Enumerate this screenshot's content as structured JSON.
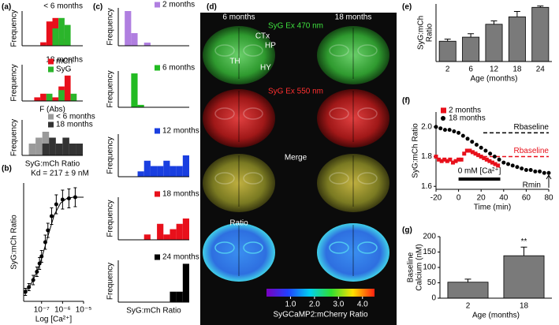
{
  "panel_labels": [
    "(a)",
    "(b)",
    "(c)",
    "(d)",
    "(e)",
    "(f)",
    "(g)"
  ],
  "image_panel": {
    "columns": [
      "6 months",
      "18 months"
    ],
    "rows": [
      "SyG Ex 470 nm",
      "SyG Ex 550 nm",
      "Merge",
      "Ratio"
    ],
    "regions": [
      "CTx",
      "HP",
      "TH",
      "HY"
    ],
    "colorbar": {
      "label": "SyGCaMP2:mCherry Ratio",
      "lim": [
        0,
        4.5
      ],
      "ticks": [
        {
          "value": 1,
          "label": "1.0"
        },
        {
          "value": 2,
          "label": "2.0"
        },
        {
          "value": 3,
          "label": "3.0"
        },
        {
          "value": 4,
          "label": "4.0"
        }
      ]
    }
  },
  "chart_data": [
    {
      "type": "histogram",
      "title": "< 6 months",
      "ylabel": "Frequency",
      "bins": [
        0,
        1,
        2,
        3,
        4,
        5,
        6,
        7,
        8,
        9,
        10
      ],
      "ylim": [
        0,
        10
      ],
      "series": [
        {
          "color": "#e8101b",
          "values": [
            0,
            0,
            0,
            1,
            7,
            8,
            2,
            0,
            0,
            0
          ]
        },
        {
          "color": "#2bb52b",
          "values": [
            0,
            0,
            0,
            0,
            0,
            5,
            8,
            6,
            0,
            0
          ]
        }
      ]
    },
    {
      "type": "histogram",
      "title": "18 months",
      "ylabel": "Frequency",
      "xlabel": "F (Abs)",
      "bins": [
        0,
        1,
        2,
        3,
        4,
        5,
        6,
        7,
        8,
        9,
        10
      ],
      "ylim": [
        0,
        10
      ],
      "legend": "upper right",
      "series": [
        {
          "name": "mCh",
          "color": "#e8101b",
          "values": [
            0,
            0,
            1,
            2,
            0,
            1,
            4,
            7,
            0,
            0
          ]
        },
        {
          "name": "SyG",
          "color": "#2bb52b",
          "values": [
            0,
            0,
            0,
            0,
            2,
            0,
            3,
            0,
            2,
            0
          ]
        }
      ]
    },
    {
      "type": "histogram",
      "ylabel": "Frequency",
      "xlabel": "SyG:mCh Ratio",
      "bins": [
        0,
        1,
        2,
        3,
        4,
        5,
        6,
        7,
        8,
        9
      ],
      "ylim": [
        0,
        6
      ],
      "legend": "upper right",
      "series": [
        {
          "name": "< 6 months",
          "color": "#9a9a9a",
          "values": [
            0,
            2,
            3,
            4,
            3,
            1,
            0,
            0,
            0
          ]
        },
        {
          "name": "18 months",
          "color": "#333333",
          "values": [
            0,
            0,
            0,
            2,
            3,
            2,
            3,
            2,
            2
          ]
        }
      ]
    },
    {
      "type": "scatter",
      "annotation": "Kd = 217 ± 9 nM",
      "ylabel": "SyG:mCh Ratio",
      "xlabel": "Log [Ca²⁺]",
      "xscale": "log",
      "xlim": [
        1.4e-08,
        1e-05
      ],
      "ylim": [
        0,
        1
      ],
      "xticks": [
        {
          "value": 1e-07,
          "label": "10⁻⁷"
        },
        {
          "value": 1e-06,
          "label": "10⁻⁶"
        },
        {
          "value": 1e-05,
          "label": "10⁻⁵"
        }
      ],
      "series": [
        {
          "color": "#000000",
          "marker": "circle",
          "x": [
            1.7e-08,
            2.5e-08,
            4e-08,
            6e-08,
            8e-08,
            1e-07,
            1.5e-07,
            2e-07,
            3e-07,
            5e-07,
            1e-06,
            2e-06,
            4e-06
          ],
          "values": [
            0.08,
            0.12,
            0.18,
            0.25,
            0.32,
            0.38,
            0.5,
            0.6,
            0.72,
            0.82,
            0.86,
            0.87,
            0.88
          ],
          "errors": [
            0.03,
            0.03,
            0.04,
            0.04,
            0.05,
            0.05,
            0.06,
            0.06,
            0.07,
            0.08,
            0.08,
            0.08,
            0.08
          ]
        },
        {
          "color": "#000000",
          "style": "line",
          "x": [
            1.5e-08,
            3e-08,
            6e-08,
            1e-07,
            2e-07,
            4e-07,
            8e-07,
            1.6e-06,
            3.2e-06,
            1e-05
          ],
          "values": [
            0.07,
            0.14,
            0.25,
            0.36,
            0.55,
            0.73,
            0.83,
            0.87,
            0.88,
            0.88
          ]
        }
      ]
    },
    {
      "type": "histogram",
      "ylabel": "Frequency",
      "bins": [
        0,
        1,
        2,
        3,
        4,
        5,
        6,
        7,
        8,
        9,
        10,
        11
      ],
      "ylim": [
        0,
        12
      ],
      "legend": "upper right",
      "series": [
        {
          "name": "2 months",
          "color": "#b07fe0",
          "values": [
            0,
            11,
            4,
            0,
            1,
            0,
            0,
            0,
            0,
            0,
            0
          ]
        }
      ]
    },
    {
      "type": "histogram",
      "ylabel": "Frequency",
      "bins": [
        0,
        1,
        2,
        3,
        4,
        5,
        6,
        7,
        8,
        9,
        10,
        11
      ],
      "ylim": [
        0,
        15
      ],
      "legend": "upper right",
      "series": [
        {
          "name": "6 months",
          "color": "#22bb22",
          "values": [
            0,
            0,
            14,
            1,
            0,
            0,
            0,
            0,
            0,
            0,
            0
          ]
        }
      ]
    },
    {
      "type": "histogram",
      "ylabel": "Frequency",
      "bins": [
        0,
        1,
        2,
        3,
        4,
        5,
        6,
        7,
        8,
        9,
        10,
        11
      ],
      "ylim": [
        0,
        8
      ],
      "legend": "upper right",
      "series": [
        {
          "name": "12 months",
          "color": "#1a3fe0",
          "values": [
            0,
            0,
            0,
            1,
            3,
            2,
            2,
            3,
            2,
            2,
            4
          ]
        }
      ]
    },
    {
      "type": "histogram",
      "ylabel": "Frequency",
      "bins": [
        0,
        1,
        2,
        3,
        4,
        5,
        6,
        7,
        8,
        9,
        10,
        11
      ],
      "ylim": [
        0,
        8
      ],
      "legend": "upper right",
      "series": [
        {
          "name": "18 months",
          "color": "#e8101b",
          "values": [
            0,
            0,
            0,
            0,
            1,
            0,
            3,
            1,
            2,
            3,
            4
          ]
        }
      ]
    },
    {
      "type": "histogram",
      "ylabel": "Frequency",
      "xlabel": "SyG:mCh Ratio",
      "bins": [
        0,
        1,
        2,
        3,
        4,
        5,
        6,
        7,
        8,
        9,
        10,
        11
      ],
      "ylim": [
        0,
        12
      ],
      "legend": "upper right",
      "series": [
        {
          "name": "24 months",
          "color": "#000000",
          "values": [
            0,
            0,
            0,
            0,
            0,
            0,
            0,
            0,
            3,
            3,
            11
          ]
        }
      ]
    },
    {
      "type": "bar",
      "ylabel": [
        "SyG:mCh",
        "Ratio"
      ],
      "xlabel": "Age (months)",
      "categories": [
        "2",
        "6",
        "12",
        "18",
        "24"
      ],
      "values": [
        0.3,
        0.36,
        0.55,
        0.66,
        0.8
      ],
      "errors": [
        0.03,
        0.05,
        0.05,
        0.08,
        0.02
      ],
      "ylim": [
        0,
        0.85
      ],
      "color": "#7a7a7a"
    },
    {
      "type": "scatter",
      "ylabel": "SyG:mCh Ratio",
      "xlabel": "Time (min)",
      "xlim": [
        -20,
        80
      ],
      "ylim": [
        1.58,
        2.1
      ],
      "xticks": [
        -20,
        0,
        20,
        40,
        60,
        80
      ],
      "yticks": [
        1.6,
        1.8,
        {
          "value": 2,
          "label": "2.0"
        }
      ],
      "legend": "upper left",
      "ref_lines": [
        {
          "label": "Rbaseline",
          "value": 1.96,
          "color": "#000000"
        },
        {
          "label": "Rbaseline",
          "value": 1.8,
          "color": "#e8101b"
        }
      ],
      "period": {
        "label": "0 mM [Ca²⁺]",
        "start": 0,
        "end": 37
      },
      "rmin": "Rmin",
      "series": [
        {
          "name": "2 months",
          "color": "#e8101b",
          "marker": "square",
          "x": [
            -20,
            -17.5,
            -15,
            -12.5,
            -10,
            -7.5,
            -5,
            -2.5,
            0,
            2.5,
            5,
            7.5,
            10,
            12.5,
            15,
            17.5,
            20,
            22.5,
            25,
            27.5,
            30,
            32.5,
            35
          ],
          "values": [
            1.8,
            1.78,
            1.77,
            1.78,
            1.77,
            1.78,
            1.76,
            1.77,
            1.78,
            1.78,
            1.82,
            1.84,
            1.84,
            1.83,
            1.82,
            1.81,
            1.8,
            1.79,
            1.78,
            1.77,
            1.76,
            1.75,
            1.74
          ]
        },
        {
          "name": "18 months",
          "color": "#000000",
          "marker": "circle",
          "x": [
            -20,
            -16,
            -12,
            -8,
            -4,
            0,
            4,
            8,
            12,
            16,
            20,
            24,
            28,
            32,
            36,
            40,
            44,
            48,
            52,
            56,
            60,
            64,
            68,
            72,
            76,
            80
          ],
          "values": [
            2.0,
            1.99,
            1.98,
            1.98,
            1.97,
            1.96,
            1.94,
            1.92,
            1.9,
            1.88,
            1.86,
            1.84,
            1.82,
            1.8,
            1.78,
            1.76,
            1.75,
            1.74,
            1.73,
            1.72,
            1.71,
            1.71,
            1.7,
            1.7,
            1.69,
            1.69
          ]
        }
      ]
    },
    {
      "type": "bar",
      "ylabel": [
        "Baseline",
        "Calcium (nM)"
      ],
      "xlabel": "Age (months)",
      "categories": [
        "2",
        "18"
      ],
      "values": [
        52,
        138
      ],
      "errors": [
        10,
        28
      ],
      "ylim": [
        0,
        200
      ],
      "yticks": [
        0,
        50,
        100,
        150,
        200
      ],
      "significance": "**",
      "color": "#7a7a7a"
    }
  ]
}
